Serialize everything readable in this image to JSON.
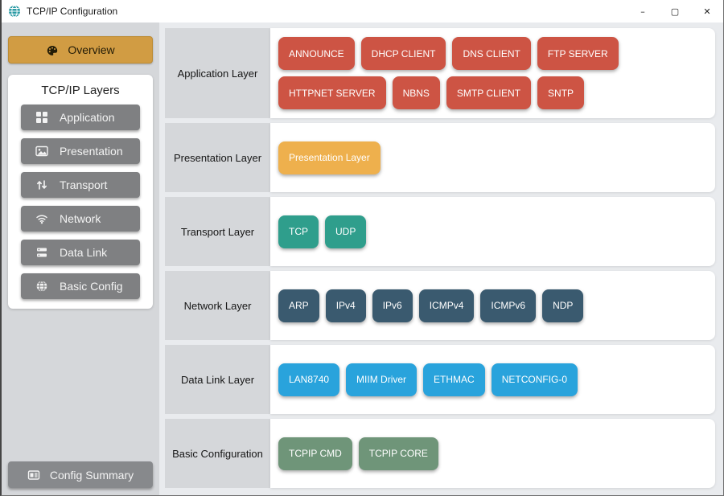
{
  "window": {
    "title": "TCP/IP Configuration",
    "controls": {
      "minimize": "–",
      "maximize": "▢",
      "close": "✕"
    }
  },
  "sidebar": {
    "overview_label": "Overview",
    "layers_panel": {
      "title": "TCP/IP Layers",
      "items": [
        {
          "label": "Application",
          "icon": "grid-icon"
        },
        {
          "label": "Presentation",
          "icon": "image-icon"
        },
        {
          "label": "Transport",
          "icon": "up-down-arrows-icon"
        },
        {
          "label": "Network",
          "icon": "wifi-icon"
        },
        {
          "label": "Data Link",
          "icon": "server-icon"
        },
        {
          "label": "Basic Config",
          "icon": "globe-icon"
        }
      ]
    },
    "config_summary_label": "Config Summary"
  },
  "main": {
    "rows": [
      {
        "label": "Application Layer",
        "color": "#cd5444",
        "buttons": [
          "ANNOUNCE",
          "DHCP CLIENT",
          "DNS CLIENT",
          "FTP SERVER",
          "HTTPNET SERVER",
          "NBNS",
          "SMTP CLIENT",
          "SNTP"
        ]
      },
      {
        "label": "Presentation Layer",
        "color": "#eeb04d",
        "buttons": [
          "Presentation Layer"
        ]
      },
      {
        "label": "Transport Layer",
        "color": "#2f9e8c",
        "buttons": [
          "TCP",
          "UDP"
        ]
      },
      {
        "label": "Network Layer",
        "color": "#3a5a6f",
        "buttons": [
          "ARP",
          "IPv4",
          "IPv6",
          "ICMPv4",
          "ICMPv6",
          "NDP"
        ]
      },
      {
        "label": "Data Link Layer",
        "color": "#29a3dc",
        "buttons": [
          "LAN8740",
          "MIIM Driver",
          "ETHMAC",
          "NETCONFIG-0"
        ]
      },
      {
        "label": "Basic Configuration",
        "color": "#6f9579",
        "buttons": [
          "TCPIP CMD",
          "TCPIP CORE"
        ]
      }
    ]
  },
  "colors": {
    "accent_gold": "#d19c43",
    "sidebar_button_gray": "#7f8082",
    "app_icon_teal": "#2a9aa4"
  }
}
